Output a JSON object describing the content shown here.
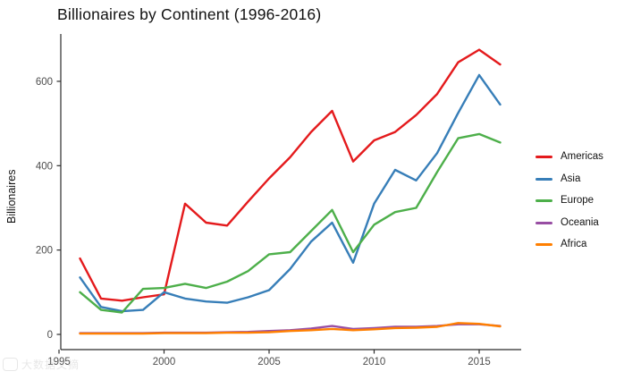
{
  "page": {
    "background": "#ffffff"
  },
  "chart_data": {
    "type": "line",
    "title": "Billionaires by Continent (1996-2016)",
    "xlabel": "",
    "ylabel": "Billionaires",
    "x": [
      1996,
      1997,
      1998,
      1999,
      2000,
      2001,
      2002,
      2003,
      2004,
      2005,
      2006,
      2007,
      2008,
      2009,
      2010,
      2011,
      2012,
      2013,
      2014,
      2015,
      2016
    ],
    "series": [
      {
        "name": "Americas",
        "color": "#e41a1c",
        "values": [
          180,
          85,
          80,
          88,
          95,
          310,
          265,
          258,
          315,
          370,
          420,
          480,
          530,
          410,
          460,
          480,
          520,
          570,
          645,
          675,
          640
        ]
      },
      {
        "name": "Asia",
        "color": "#377eb8",
        "values": [
          135,
          65,
          55,
          58,
          100,
          85,
          78,
          75,
          88,
          105,
          155,
          220,
          265,
          170,
          310,
          390,
          365,
          430,
          525,
          615,
          545
        ]
      },
      {
        "name": "Europe",
        "color": "#4daf4a",
        "values": [
          100,
          58,
          52,
          108,
          110,
          120,
          110,
          125,
          150,
          190,
          195,
          245,
          295,
          195,
          260,
          290,
          300,
          385,
          465,
          475,
          455
        ]
      },
      {
        "name": "Oceania",
        "color": "#984ea3",
        "values": [
          3,
          3,
          3,
          3,
          4,
          4,
          4,
          5,
          6,
          8,
          10,
          14,
          20,
          13,
          15,
          18,
          18,
          20,
          24,
          24,
          20
        ]
      },
      {
        "name": "Africa",
        "color": "#ff7f00",
        "values": [
          2,
          2,
          2,
          2,
          3,
          3,
          3,
          4,
          4,
          5,
          8,
          10,
          13,
          10,
          12,
          15,
          16,
          18,
          27,
          25,
          19
        ]
      }
    ],
    "x_ticks": [
      1995,
      2000,
      2005,
      2010,
      2015
    ],
    "y_ticks": [
      0,
      200,
      400,
      600
    ],
    "xlim": [
      1995,
      2017
    ],
    "ylim": [
      0,
      690
    ],
    "grid": false,
    "legend_position": "right",
    "axis_color": "#2b2b2b",
    "tick_label_color": "#4d4d4d"
  },
  "watermark": {
    "text": "大数据文摘"
  }
}
